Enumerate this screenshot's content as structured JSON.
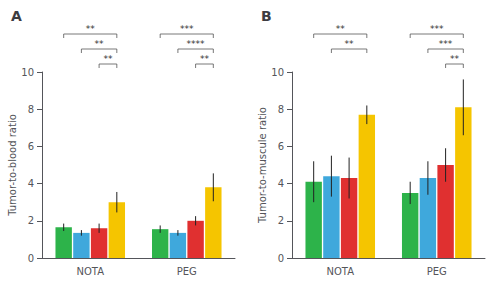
{
  "chart_data": [
    {
      "type": "bar",
      "title": "A",
      "ylabel": "Tumor-to-blood ratio",
      "categories": [
        "NOTA",
        "PEG"
      ],
      "series": [
        {
          "color": "#2db34a",
          "values": [
            1.65,
            1.55
          ],
          "errors": [
            0.2,
            0.2
          ]
        },
        {
          "color": "#3fa8dc",
          "values": [
            1.35,
            1.35
          ],
          "errors": [
            0.15,
            0.15
          ]
        },
        {
          "color": "#e03030",
          "values": [
            1.6,
            2.0
          ],
          "errors": [
            0.25,
            0.25
          ]
        },
        {
          "color": "#f5c500",
          "values": [
            3.0,
            3.8
          ],
          "errors": [
            0.55,
            0.75
          ]
        }
      ],
      "ylim": [
        0,
        10
      ],
      "yticks": [
        0,
        2,
        4,
        6,
        8,
        10
      ],
      "grid": false,
      "annotations": [
        {
          "category": "NOTA",
          "from_series": 0,
          "to_series": 3,
          "label": "**"
        },
        {
          "category": "NOTA",
          "from_series": 1,
          "to_series": 3,
          "label": "**"
        },
        {
          "category": "NOTA",
          "from_series": 2,
          "to_series": 3,
          "label": "**"
        },
        {
          "category": "PEG",
          "from_series": 0,
          "to_series": 3,
          "label": "***"
        },
        {
          "category": "PEG",
          "from_series": 1,
          "to_series": 3,
          "label": "****"
        },
        {
          "category": "PEG",
          "from_series": 2,
          "to_series": 3,
          "label": "**"
        }
      ]
    },
    {
      "type": "bar",
      "title": "B",
      "ylabel": "Tumor-to-muscule ratio",
      "categories": [
        "NOTA",
        "PEG"
      ],
      "series": [
        {
          "color": "#2db34a",
          "values": [
            4.1,
            3.5
          ],
          "errors": [
            1.1,
            0.6
          ]
        },
        {
          "color": "#3fa8dc",
          "values": [
            4.4,
            4.3
          ],
          "errors": [
            1.1,
            0.9
          ]
        },
        {
          "color": "#e03030",
          "values": [
            4.3,
            5.0
          ],
          "errors": [
            1.1,
            0.9
          ]
        },
        {
          "color": "#f5c500",
          "values": [
            7.7,
            8.1
          ],
          "errors": [
            0.5,
            1.5
          ]
        }
      ],
      "ylim": [
        0,
        10
      ],
      "yticks": [
        0,
        2,
        4,
        6,
        8,
        10
      ],
      "grid": false,
      "annotations": [
        {
          "category": "NOTA",
          "from_series": 0,
          "to_series": 3,
          "label": "**"
        },
        {
          "category": "NOTA",
          "from_series": 1,
          "to_series": 3,
          "label": "**"
        },
        {
          "category": "PEG",
          "from_series": 0,
          "to_series": 3,
          "label": "***"
        },
        {
          "category": "PEG",
          "from_series": 1,
          "to_series": 3,
          "label": "***"
        },
        {
          "category": "PEG",
          "from_series": 2,
          "to_series": 3,
          "label": "**"
        }
      ]
    }
  ]
}
